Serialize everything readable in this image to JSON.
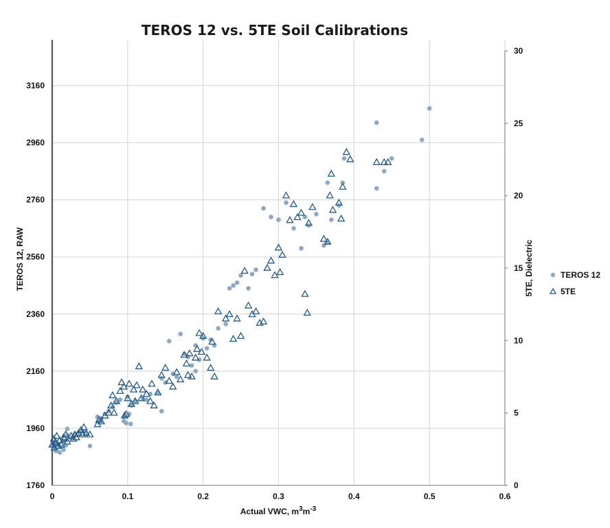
{
  "chart_data": {
    "type": "scatter",
    "title": "TEROS 12 vs. 5TE Soil Calibrations",
    "xlabel": "Actual VWC, m3m-3",
    "xlabel_parts": {
      "main": "Actual VWC, m",
      "sup1": "3",
      "mid": "m",
      "sup2": "-3"
    },
    "ylabel_left": "TEROS 12, RAW",
    "ylabel_right": "5TE, Dielectric",
    "xlim": [
      0,
      0.6
    ],
    "ylim_left": [
      1760,
      3320
    ],
    "ylim_right": [
      0,
      30
    ],
    "x_ticks": [
      "0",
      "0.1",
      "0.2",
      "0.3",
      "0.4",
      "0.5",
      "0.6"
    ],
    "y_left_ticks": [
      "1760",
      "1960",
      "2160",
      "2360",
      "2560",
      "2760",
      "2960",
      "3160"
    ],
    "y_right_ticks": [
      "0",
      "5",
      "10",
      "15",
      "20",
      "25",
      "30"
    ],
    "grid": true,
    "legend_position": "right",
    "series": [
      {
        "name": "TEROS 12",
        "axis": "left",
        "marker": "circle",
        "color": "#8fa8c4",
        "points": [
          [
            0.0,
            1900
          ],
          [
            0.002,
            1890
          ],
          [
            0.003,
            1910
          ],
          [
            0.005,
            1880
          ],
          [
            0.008,
            1905
          ],
          [
            0.01,
            1875
          ],
          [
            0.012,
            1895
          ],
          [
            0.015,
            1885
          ],
          [
            0.016,
            1915
          ],
          [
            0.018,
            1900
          ],
          [
            0.02,
            1958
          ],
          [
            0.02,
            1935
          ],
          [
            0.025,
            1925
          ],
          [
            0.028,
            1930
          ],
          [
            0.03,
            1940
          ],
          [
            0.035,
            1945
          ],
          [
            0.04,
            1950
          ],
          [
            0.045,
            1942
          ],
          [
            0.05,
            1898
          ],
          [
            0.06,
            2000
          ],
          [
            0.062,
            1985
          ],
          [
            0.065,
            1995
          ],
          [
            0.07,
            2010
          ],
          [
            0.075,
            2020
          ],
          [
            0.08,
            2035
          ],
          [
            0.085,
            2050
          ],
          [
            0.09,
            2060
          ],
          [
            0.095,
            1985
          ],
          [
            0.096,
            2002
          ],
          [
            0.098,
            1978
          ],
          [
            0.1,
            2070
          ],
          [
            0.102,
            2010
          ],
          [
            0.104,
            1975
          ],
          [
            0.105,
            2040
          ],
          [
            0.11,
            2055
          ],
          [
            0.12,
            2065
          ],
          [
            0.125,
            2060
          ],
          [
            0.13,
            2080
          ],
          [
            0.14,
            2085
          ],
          [
            0.145,
            2020
          ],
          [
            0.145,
            2135
          ],
          [
            0.15,
            2120
          ],
          [
            0.155,
            2265
          ],
          [
            0.16,
            2150
          ],
          [
            0.165,
            2140
          ],
          [
            0.17,
            2290
          ],
          [
            0.175,
            2220
          ],
          [
            0.18,
            2210
          ],
          [
            0.185,
            2180
          ],
          [
            0.19,
            2160
          ],
          [
            0.19,
            2250
          ],
          [
            0.195,
            2200
          ],
          [
            0.2,
            2275
          ],
          [
            0.205,
            2240
          ],
          [
            0.21,
            2270
          ],
          [
            0.215,
            2250
          ],
          [
            0.22,
            2310
          ],
          [
            0.23,
            2325
          ],
          [
            0.235,
            2450
          ],
          [
            0.24,
            2460
          ],
          [
            0.245,
            2470
          ],
          [
            0.25,
            2495
          ],
          [
            0.26,
            2450
          ],
          [
            0.265,
            2500
          ],
          [
            0.27,
            2515
          ],
          [
            0.28,
            2730
          ],
          [
            0.29,
            2700
          ],
          [
            0.3,
            2690
          ],
          [
            0.31,
            2750
          ],
          [
            0.32,
            2660
          ],
          [
            0.33,
            2590
          ],
          [
            0.335,
            2700
          ],
          [
            0.34,
            2670
          ],
          [
            0.35,
            2710
          ],
          [
            0.36,
            2600
          ],
          [
            0.365,
            2610
          ],
          [
            0.365,
            2820
          ],
          [
            0.37,
            2690
          ],
          [
            0.38,
            2740
          ],
          [
            0.385,
            2820
          ],
          [
            0.387,
            2905
          ],
          [
            0.43,
            2800
          ],
          [
            0.43,
            3030
          ],
          [
            0.44,
            2860
          ],
          [
            0.45,
            2905
          ],
          [
            0.49,
            2970
          ],
          [
            0.5,
            3080
          ]
        ]
      },
      {
        "name": "5TE",
        "axis": "right",
        "marker": "triangle",
        "color": "#1f5a8a",
        "points": [
          [
            0.0,
            2.8
          ],
          [
            0.002,
            3.2
          ],
          [
            0.003,
            2.6
          ],
          [
            0.004,
            3.0
          ],
          [
            0.005,
            2.9
          ],
          [
            0.006,
            3.4
          ],
          [
            0.008,
            2.7
          ],
          [
            0.01,
            3.1
          ],
          [
            0.012,
            2.8
          ],
          [
            0.015,
            3.3
          ],
          [
            0.016,
            3.2
          ],
          [
            0.018,
            3.5
          ],
          [
            0.02,
            3.0
          ],
          [
            0.025,
            3.4
          ],
          [
            0.028,
            3.2
          ],
          [
            0.03,
            3.5
          ],
          [
            0.032,
            3.3
          ],
          [
            0.035,
            3.6
          ],
          [
            0.038,
            3.8
          ],
          [
            0.04,
            3.5
          ],
          [
            0.042,
            4.0
          ],
          [
            0.045,
            3.6
          ],
          [
            0.05,
            3.5
          ],
          [
            0.06,
            4.2
          ],
          [
            0.062,
            4.5
          ],
          [
            0.065,
            4.4
          ],
          [
            0.07,
            4.8
          ],
          [
            0.075,
            5.0
          ],
          [
            0.078,
            5.5
          ],
          [
            0.08,
            6.2
          ],
          [
            0.082,
            5.0
          ],
          [
            0.085,
            5.8
          ],
          [
            0.09,
            6.5
          ],
          [
            0.092,
            7.1
          ],
          [
            0.095,
            6.8
          ],
          [
            0.096,
            4.8
          ],
          [
            0.098,
            4.9
          ],
          [
            0.1,
            6.0
          ],
          [
            0.102,
            7.0
          ],
          [
            0.105,
            5.6
          ],
          [
            0.108,
            6.6
          ],
          [
            0.11,
            5.8
          ],
          [
            0.112,
            6.9
          ],
          [
            0.115,
            8.2
          ],
          [
            0.118,
            6.0
          ],
          [
            0.12,
            6.6
          ],
          [
            0.125,
            6.3
          ],
          [
            0.13,
            5.8
          ],
          [
            0.132,
            7.0
          ],
          [
            0.135,
            5.5
          ],
          [
            0.14,
            6.4
          ],
          [
            0.145,
            7.6
          ],
          [
            0.15,
            8.1
          ],
          [
            0.155,
            7.2
          ],
          [
            0.16,
            6.8
          ],
          [
            0.165,
            7.8
          ],
          [
            0.17,
            7.3
          ],
          [
            0.175,
            9.0
          ],
          [
            0.178,
            8.4
          ],
          [
            0.18,
            7.6
          ],
          [
            0.182,
            9.1
          ],
          [
            0.185,
            7.5
          ],
          [
            0.19,
            8.8
          ],
          [
            0.192,
            9.4
          ],
          [
            0.195,
            10.5
          ],
          [
            0.198,
            9.2
          ],
          [
            0.2,
            10.3
          ],
          [
            0.205,
            8.8
          ],
          [
            0.21,
            8.1
          ],
          [
            0.212,
            9.9
          ],
          [
            0.215,
            7.5
          ],
          [
            0.22,
            12.0
          ],
          [
            0.23,
            11.5
          ],
          [
            0.235,
            11.8
          ],
          [
            0.24,
            10.1
          ],
          [
            0.245,
            11.5
          ],
          [
            0.25,
            10.3
          ],
          [
            0.255,
            14.8
          ],
          [
            0.26,
            12.4
          ],
          [
            0.265,
            11.8
          ],
          [
            0.27,
            12.0
          ],
          [
            0.275,
            11.2
          ],
          [
            0.28,
            11.3
          ],
          [
            0.285,
            15.0
          ],
          [
            0.29,
            15.5
          ],
          [
            0.295,
            14.5
          ],
          [
            0.3,
            16.4
          ],
          [
            0.302,
            14.7
          ],
          [
            0.305,
            15.9
          ],
          [
            0.31,
            20.0
          ],
          [
            0.315,
            18.3
          ],
          [
            0.32,
            19.4
          ],
          [
            0.325,
            18.5
          ],
          [
            0.33,
            18.8
          ],
          [
            0.335,
            13.2
          ],
          [
            0.338,
            11.9
          ],
          [
            0.34,
            18.1
          ],
          [
            0.345,
            19.2
          ],
          [
            0.36,
            17.0
          ],
          [
            0.365,
            16.8
          ],
          [
            0.368,
            20.0
          ],
          [
            0.37,
            21.5
          ],
          [
            0.372,
            19.0
          ],
          [
            0.38,
            19.5
          ],
          [
            0.383,
            18.4
          ],
          [
            0.385,
            20.6
          ],
          [
            0.39,
            23.0
          ],
          [
            0.395,
            22.5
          ],
          [
            0.43,
            22.3
          ],
          [
            0.44,
            22.3
          ],
          [
            0.445,
            22.3
          ]
        ]
      }
    ]
  }
}
